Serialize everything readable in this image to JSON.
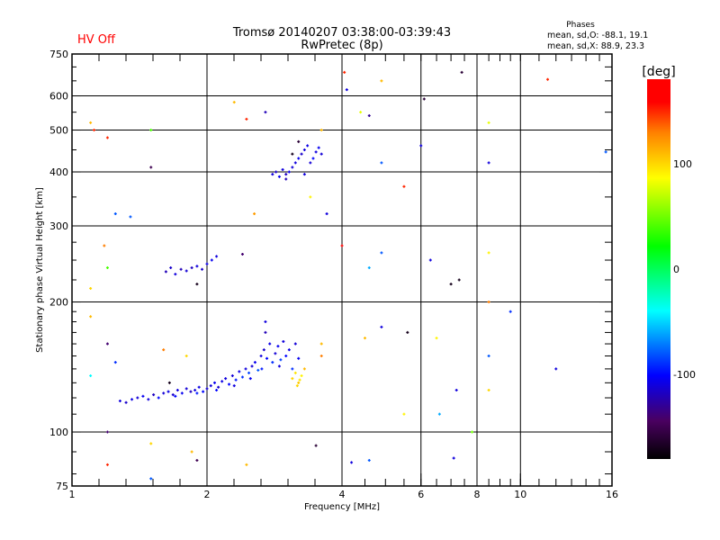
{
  "status": {
    "hv_label": "HV Off",
    "hv_color": "#ff0000"
  },
  "chart_data": {
    "type": "scatter",
    "title": "Tromsø 20140207 03:38:00-03:39:43",
    "subtitle": "RwPretec (8p)",
    "stats": {
      "heading": "Phases",
      "o_line": "mean, sd,O: -88.1, 19.1",
      "x_line": "mean, sd,X:  88.9, 23.3"
    },
    "xlabel": "Frequency [MHz]",
    "ylabel": "Stationary phase Virtual Height [km]",
    "xscale": "log",
    "yscale": "log",
    "xlim": [
      1,
      16
    ],
    "ylim": [
      75,
      750
    ],
    "xticks": [
      1,
      2,
      4,
      6,
      8,
      10,
      16
    ],
    "xtick_labels": [
      "1",
      "2",
      "4",
      "6",
      "8",
      "10",
      "16"
    ],
    "yticks": [
      75,
      100,
      200,
      300,
      400,
      500,
      600,
      750
    ],
    "ytick_labels": [
      "75",
      "100",
      "200",
      "300",
      "400",
      "500",
      "600",
      "750"
    ],
    "xgrid": [
      2,
      4,
      6,
      8,
      10
    ],
    "ygrid": [
      100,
      200,
      300,
      400,
      500,
      600
    ],
    "colorbar": {
      "label": "[deg]",
      "range": [
        -180,
        180
      ],
      "ticks": [
        100,
        0,
        -100
      ],
      "tick_labels": [
        "100",
        "0",
        "-100"
      ]
    },
    "point_fields": [
      "frequency_mhz",
      "height_km",
      "phase_deg"
    ],
    "points": [
      [
        1.28,
        118,
        -110
      ],
      [
        1.32,
        117,
        -115
      ],
      [
        1.36,
        119,
        -108
      ],
      [
        1.4,
        120,
        -112
      ],
      [
        1.44,
        121,
        -105
      ],
      [
        1.48,
        119,
        -110
      ],
      [
        1.52,
        122,
        -118
      ],
      [
        1.56,
        120,
        -100
      ],
      [
        1.6,
        123,
        -112
      ],
      [
        1.64,
        124,
        -108
      ],
      [
        1.68,
        122,
        -115
      ],
      [
        1.72,
        125,
        -110
      ],
      [
        1.76,
        123,
        -105
      ],
      [
        1.8,
        126,
        -112
      ],
      [
        1.84,
        124,
        -118
      ],
      [
        1.88,
        125,
        -110
      ],
      [
        1.92,
        127,
        -108
      ],
      [
        1.96,
        124,
        -100
      ],
      [
        2.0,
        126,
        -112
      ],
      [
        2.04,
        128,
        -110
      ],
      [
        2.08,
        130,
        -105
      ],
      [
        2.12,
        127,
        -115
      ],
      [
        2.16,
        131,
        -108
      ],
      [
        2.2,
        133,
        -110
      ],
      [
        2.24,
        129,
        -100
      ],
      [
        2.28,
        135,
        -112
      ],
      [
        2.32,
        132,
        -95
      ],
      [
        2.36,
        138,
        -108
      ],
      [
        2.4,
        134,
        -90
      ],
      [
        2.44,
        140,
        -110
      ],
      [
        2.48,
        137,
        -85
      ],
      [
        2.52,
        142,
        -112
      ],
      [
        2.56,
        145,
        -105
      ],
      [
        2.6,
        139,
        -80
      ],
      [
        2.64,
        150,
        -110
      ],
      [
        2.68,
        155,
        -115
      ],
      [
        2.72,
        148,
        -100
      ],
      [
        2.76,
        160,
        -108
      ],
      [
        2.8,
        145,
        -90
      ],
      [
        2.84,
        152,
        -112
      ],
      [
        2.88,
        158,
        -105
      ],
      [
        2.92,
        147,
        -85
      ],
      [
        2.96,
        162,
        -110
      ],
      [
        3.0,
        150,
        -100
      ],
      [
        3.05,
        155,
        -108
      ],
      [
        3.1,
        140,
        -90
      ],
      [
        3.15,
        160,
        -112
      ],
      [
        3.2,
        148,
        -105
      ],
      [
        2.7,
        180,
        -110
      ],
      [
        2.7,
        170,
        -120
      ],
      [
        1.7,
        121,
        -100
      ],
      [
        1.9,
        123,
        -95
      ],
      [
        2.1,
        125,
        -100
      ],
      [
        2.3,
        128,
        -110
      ],
      [
        2.5,
        133,
        -105
      ],
      [
        2.65,
        140,
        -95
      ],
      [
        2.9,
        142,
        -110
      ],
      [
        3.1,
        133,
        100
      ],
      [
        3.15,
        137,
        95
      ],
      [
        3.2,
        130,
        105
      ],
      [
        3.25,
        135,
        90
      ],
      [
        3.3,
        140,
        110
      ],
      [
        3.18,
        128,
        100
      ],
      [
        3.22,
        132,
        95
      ],
      [
        1.62,
        235,
        -120
      ],
      [
        1.66,
        240,
        -115
      ],
      [
        1.7,
        232,
        -110
      ],
      [
        1.75,
        238,
        -120
      ],
      [
        1.8,
        236,
        -112
      ],
      [
        1.85,
        240,
        -118
      ],
      [
        1.9,
        242,
        -110
      ],
      [
        1.95,
        238,
        -115
      ],
      [
        2.0,
        245,
        -108
      ],
      [
        2.05,
        250,
        -105
      ],
      [
        2.1,
        255,
        -110
      ],
      [
        1.9,
        220,
        -170
      ],
      [
        2.4,
        258,
        -140
      ],
      [
        2.8,
        395,
        -110
      ],
      [
        2.85,
        400,
        -115
      ],
      [
        2.9,
        390,
        -105
      ],
      [
        2.95,
        405,
        -110
      ],
      [
        3.0,
        395,
        -118
      ],
      [
        3.05,
        400,
        -108
      ],
      [
        3.1,
        410,
        -112
      ],
      [
        3.15,
        420,
        -110
      ],
      [
        3.2,
        430,
        -105
      ],
      [
        3.25,
        440,
        -115
      ],
      [
        3.3,
        450,
        -110
      ],
      [
        3.35,
        460,
        -108
      ],
      [
        3.4,
        420,
        -112
      ],
      [
        3.45,
        430,
        -100
      ],
      [
        3.5,
        445,
        -110
      ],
      [
        3.55,
        455,
        -105
      ],
      [
        3.6,
        440,
        -112
      ],
      [
        3.1,
        440,
        -170
      ],
      [
        3.2,
        470,
        -160
      ],
      [
        3.0,
        385,
        -120
      ],
      [
        3.3,
        395,
        -110
      ],
      [
        1.12,
        500,
        150
      ],
      [
        1.2,
        480,
        150
      ],
      [
        1.1,
        520,
        110
      ],
      [
        1.25,
        320,
        -80
      ],
      [
        1.18,
        270,
        130
      ],
      [
        1.1,
        215,
        100
      ],
      [
        1.2,
        240,
        40
      ],
      [
        1.5,
        500,
        40
      ],
      [
        1.5,
        410,
        -150
      ],
      [
        2.3,
        580,
        110
      ],
      [
        2.7,
        550,
        -120
      ],
      [
        4.05,
        680,
        150
      ],
      [
        4.1,
        620,
        -110
      ],
      [
        4.4,
        550,
        80
      ],
      [
        4.6,
        540,
        -130
      ],
      [
        4.9,
        650,
        110
      ],
      [
        6.1,
        590,
        -160
      ],
      [
        7.4,
        680,
        -160
      ],
      [
        8.5,
        520,
        80
      ],
      [
        8.5,
        420,
        -110
      ],
      [
        11.5,
        655,
        150
      ],
      [
        15.5,
        445,
        -80
      ],
      [
        4.0,
        270,
        160
      ],
      [
        4.9,
        260,
        -80
      ],
      [
        4.6,
        240,
        -60
      ],
      [
        6.3,
        250,
        -110
      ],
      [
        7.0,
        220,
        -170
      ],
      [
        7.3,
        225,
        -170
      ],
      [
        8.5,
        260,
        90
      ],
      [
        8.5,
        200,
        130
      ],
      [
        9.5,
        190,
        -90
      ],
      [
        12,
        140,
        -110
      ],
      [
        5.5,
        110,
        90
      ],
      [
        6.6,
        110,
        -60
      ],
      [
        7.2,
        125,
        -110
      ],
      [
        7.8,
        100,
        50
      ],
      [
        4.2,
        85,
        -110
      ],
      [
        4.6,
        86,
        -80
      ],
      [
        7.1,
        87,
        -110
      ],
      [
        3.5,
        93,
        -160
      ],
      [
        2.45,
        84,
        110
      ],
      [
        1.2,
        84,
        150
      ],
      [
        1.5,
        94,
        100
      ],
      [
        1.5,
        78,
        -80
      ],
      [
        1.9,
        86,
        -150
      ],
      [
        1.85,
        90,
        110
      ],
      [
        1.2,
        100,
        -140
      ],
      [
        5.6,
        170,
        -170
      ],
      [
        4.9,
        175,
        -110
      ],
      [
        4.5,
        165,
        110
      ],
      [
        6.5,
        165,
        90
      ],
      [
        8.5,
        150,
        -80
      ],
      [
        8.5,
        125,
        100
      ],
      [
        3.6,
        160,
        110
      ],
      [
        3.6,
        150,
        130
      ],
      [
        1.1,
        185,
        110
      ],
      [
        1.2,
        160,
        -140
      ],
      [
        1.25,
        145,
        -90
      ],
      [
        1.6,
        155,
        130
      ],
      [
        1.8,
        150,
        100
      ],
      [
        1.65,
        130,
        -170
      ],
      [
        1.1,
        135,
        -40
      ],
      [
        2.45,
        530,
        150
      ],
      [
        3.6,
        500,
        110
      ],
      [
        4.9,
        420,
        -80
      ],
      [
        5.5,
        370,
        150
      ],
      [
        6.0,
        460,
        -110
      ],
      [
        3.4,
        350,
        90
      ],
      [
        3.7,
        320,
        -110
      ],
      [
        1.35,
        315,
        -80
      ],
      [
        2.55,
        320,
        120
      ]
    ]
  }
}
